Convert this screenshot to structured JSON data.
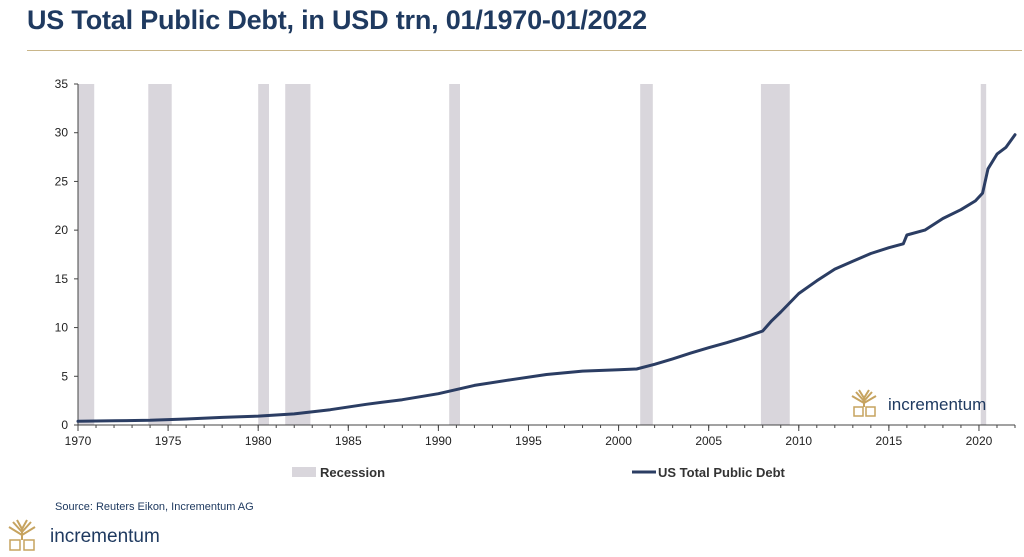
{
  "title": "US Total Public Debt, in USD trn, 01/1970-01/2022",
  "source": "Source: Reuters Eikon, Incrementum AG",
  "brand": "incrementum",
  "colors": {
    "series": "#2b3d63",
    "recession": "#d9d6dc",
    "title": "#1f3a60",
    "brand_gold": "#c6a35f"
  },
  "chart_data": {
    "type": "line",
    "title": "US Total Public Debt, in USD trn, 01/1970-01/2022",
    "xlim": [
      1970,
      2022
    ],
    "ylim": [
      0,
      35
    ],
    "x_ticks": [
      "1970",
      "1975",
      "1980",
      "1985",
      "1990",
      "1995",
      "2000",
      "2005",
      "2010",
      "2015",
      "2020"
    ],
    "y_ticks": [
      "0",
      "5",
      "10",
      "15",
      "20",
      "25",
      "30",
      "35"
    ],
    "grid": false,
    "legend": {
      "placement": "bottom",
      "entries": [
        "Recession",
        "US Total Public Debt"
      ]
    },
    "recessions": [
      {
        "start": 1970.0,
        "end": 1970.9
      },
      {
        "start": 1973.9,
        "end": 1975.2
      },
      {
        "start": 1980.0,
        "end": 1980.6
      },
      {
        "start": 1981.5,
        "end": 1982.9
      },
      {
        "start": 1990.6,
        "end": 1991.2
      },
      {
        "start": 2001.2,
        "end": 2001.9
      },
      {
        "start": 2007.9,
        "end": 2009.5
      },
      {
        "start": 2020.1,
        "end": 2020.4
      }
    ],
    "series": [
      {
        "name": "US Total Public Debt",
        "x": [
          1970,
          1972,
          1974,
          1976,
          1978,
          1980,
          1982,
          1984,
          1986,
          1988,
          1990,
          1992,
          1994,
          1996,
          1998,
          2000,
          2001,
          2002,
          2003,
          2004,
          2005,
          2006,
          2007,
          2008,
          2008.5,
          2009,
          2010,
          2011,
          2012,
          2013,
          2014,
          2015,
          2015.8,
          2016,
          2017,
          2018,
          2019,
          2019.8,
          2020.2,
          2020.5,
          2021,
          2021.5,
          2022
        ],
        "y": [
          0.38,
          0.43,
          0.48,
          0.62,
          0.78,
          0.91,
          1.14,
          1.57,
          2.12,
          2.6,
          3.21,
          4.06,
          4.64,
          5.18,
          5.53,
          5.67,
          5.75,
          6.23,
          6.78,
          7.38,
          7.93,
          8.45,
          9.01,
          9.65,
          10.7,
          11.6,
          13.5,
          14.8,
          16.0,
          16.8,
          17.6,
          18.2,
          18.6,
          19.5,
          20.0,
          21.2,
          22.1,
          23.0,
          23.8,
          26.3,
          27.8,
          28.5,
          29.8
        ]
      }
    ]
  }
}
